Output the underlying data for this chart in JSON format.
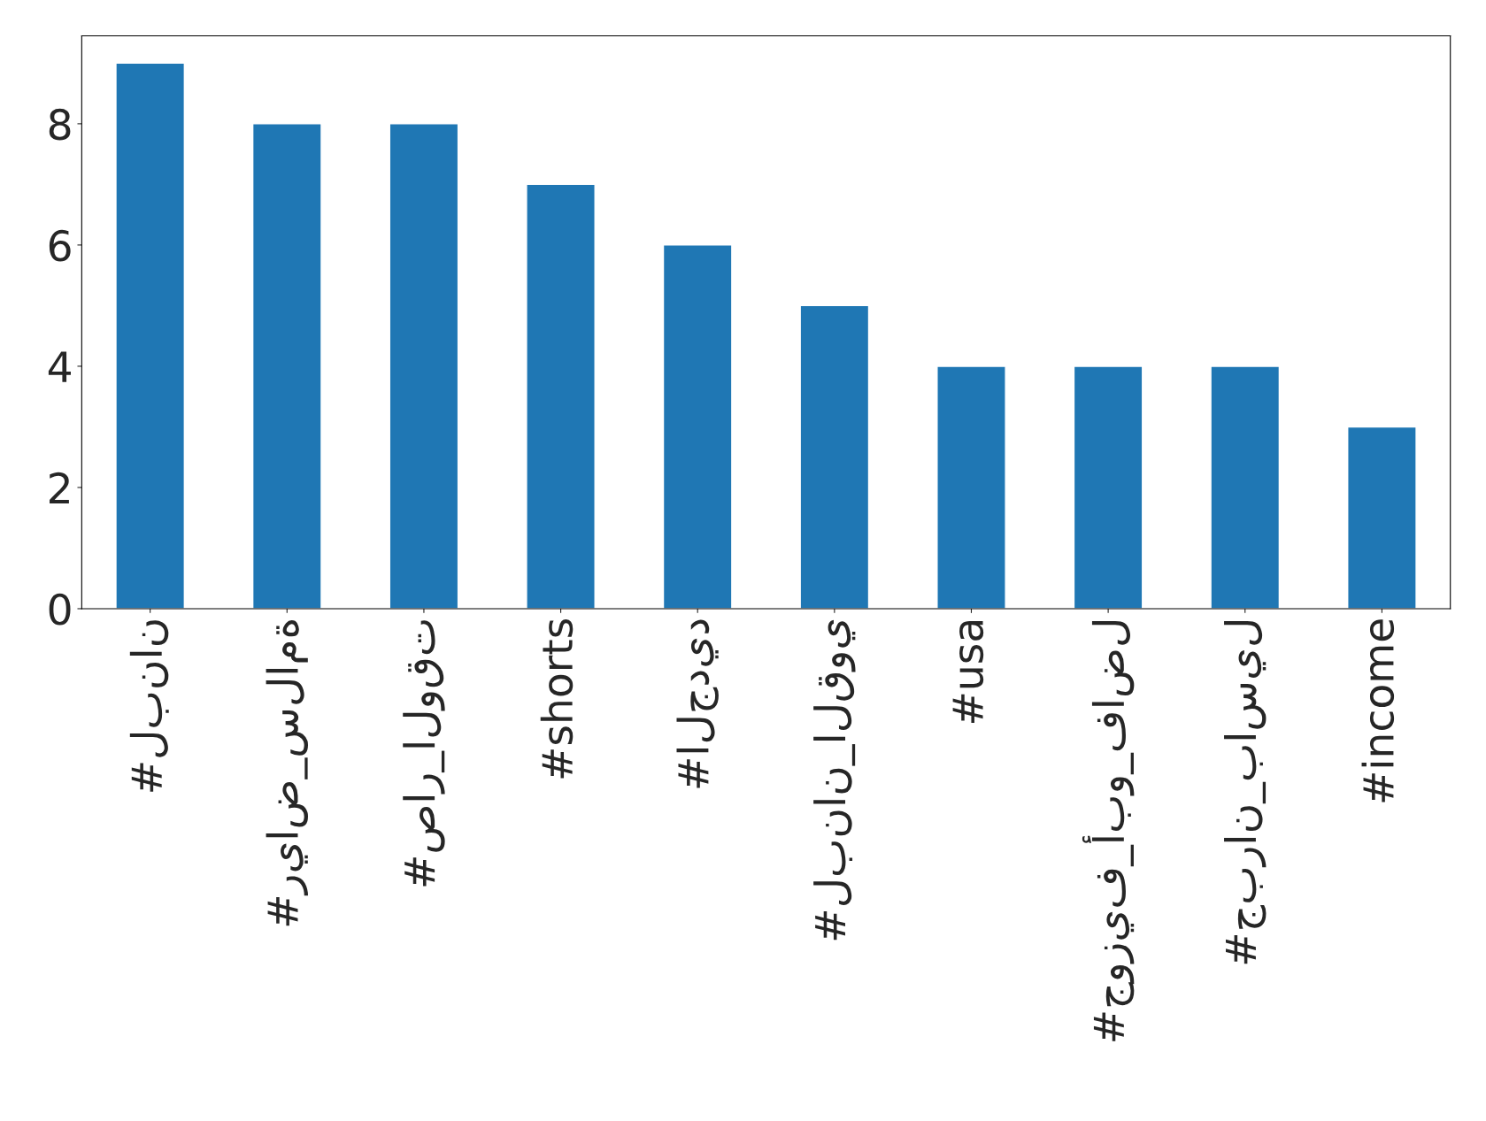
{
  "chart_data": {
    "type": "bar",
    "categories": [
      "#لبنان",
      "#رياض_سلامة",
      "#صار_الوقت",
      "#shorts",
      "#الجديد",
      "#لبنان_القوي",
      "#usa",
      "#جوزيف_أبو_فاضل",
      "#جبران_باسيل",
      "#income"
    ],
    "values": [
      9,
      8,
      8,
      7,
      6,
      5,
      4,
      4,
      4,
      3
    ],
    "color": "#1f77b4",
    "ylim": [
      0,
      9.45
    ],
    "yticks": [
      0,
      2,
      4,
      6,
      8
    ],
    "grid": false,
    "legend": false
  }
}
